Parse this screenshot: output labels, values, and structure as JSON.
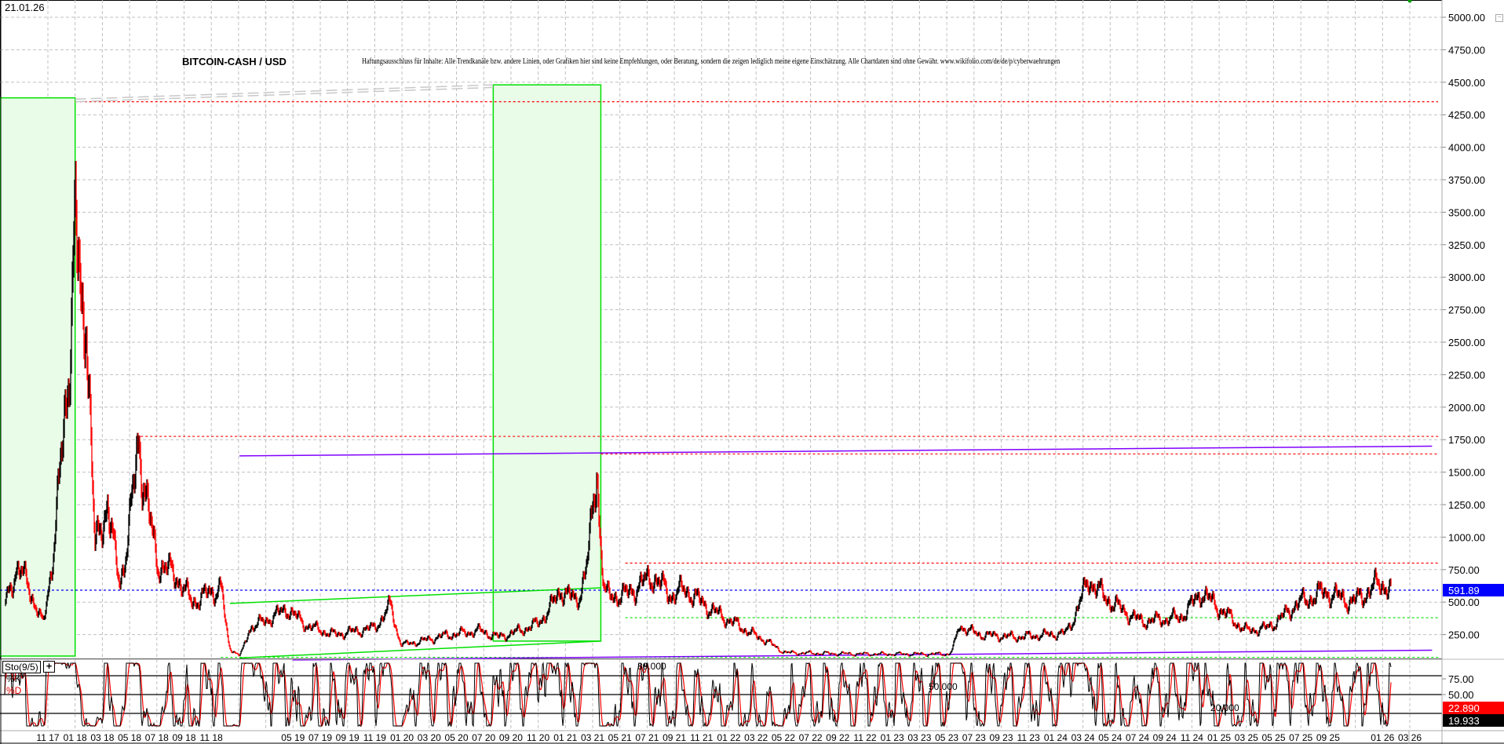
{
  "header": {
    "date": "21.01.26",
    "title": "BITCOIN-CASH / USD",
    "disclaimer": "Haftungsausschluss für Inhalte: Alle Trendkanäle bzw. andere Linien, oder Grafiken hier sind keine Empfehlungen, oder Beratung, sondern die zeigen lediglich meine eigene Einschätzung. Alle Chartdaten sind ohne Gewähr. www.wikifolio.com/de/de/p/cyberwaehrungen"
  },
  "indicator": {
    "label": "Sto(9/5)",
    "add_icon": "plus-icon",
    "k_label": "%K",
    "d_label": "%D",
    "k_last": "19.933",
    "d_last": "22.890",
    "levels": [
      {
        "value": 80,
        "label": "80.000"
      },
      {
        "value": 50,
        "label": "50.000"
      },
      {
        "value": 20,
        "label": "20.000"
      }
    ],
    "y_ticks": [
      "75.00",
      "50.00"
    ]
  },
  "colors": {
    "price_up": "#000000",
    "price_down": "#ff0000",
    "last_price_box": "#0000ff",
    "zone_fill": "#e8fce8",
    "zone_border": "#00e000",
    "resistance": "#ff0000",
    "support": "#00e000",
    "trend_purple": "#8000ff"
  },
  "chart_data": {
    "type": "line",
    "title": "BITCOIN-CASH / USD",
    "xlabel": "",
    "ylabel": "",
    "ylim": [
      0,
      5000
    ],
    "grid": true,
    "last_price": "591.89",
    "y_ticks": [
      "250.00",
      "500.00",
      "750.00",
      "1000.00",
      "1250.00",
      "1500.00",
      "1750.00",
      "2000.00",
      "2250.00",
      "2500.00",
      "2750.00",
      "3000.00",
      "3250.00",
      "3500.00",
      "3750.00",
      "4000.00",
      "4250.00",
      "4500.00",
      "4750.00",
      "5000.00"
    ],
    "x_ticks": [
      "11 17",
      "01 18",
      "03 18",
      "05 18",
      "07 18",
      "09 18",
      "11 18",
      "",
      "",
      "05 19",
      "07 19",
      "09 19",
      "11 19",
      "01 20",
      "03 20",
      "05 20",
      "07 20",
      "09 20",
      "11 20",
      "01 21",
      "03 21",
      "05 21",
      "07 21",
      "09 21",
      "11 21",
      "01 22",
      "03 22",
      "05 22",
      "07 22",
      "09 22",
      "11 22",
      "01 23",
      "03 23",
      "05 23",
      "07 23",
      "09 23",
      "11 23",
      "01 24",
      "03 24",
      "05 24",
      "07 24",
      "09 24",
      "11 24",
      "01 25",
      "03 25",
      "05 25",
      "07 25",
      "09 25",
      "",
      "01 26",
      "03 26"
    ],
    "series": [
      {
        "points": [
          [
            "2017-07-25",
            480
          ],
          [
            "2017-08-20",
            760
          ],
          [
            "2017-09-18",
            650
          ],
          [
            "2017-10-20",
            330
          ],
          [
            "2017-11-01",
            600
          ],
          [
            "2017-11-28",
            1500
          ],
          [
            "2018-01-01",
            3400
          ],
          [
            "2018-01-16",
            2600
          ],
          [
            "2018-01-25",
            2900
          ],
          [
            "2018-02-06",
            1800
          ],
          [
            "2018-02-15",
            900
          ],
          [
            "2018-03-12",
            1300
          ],
          [
            "2018-04-09",
            650
          ],
          [
            "2018-05-21",
            1780
          ],
          [
            "2018-07-03",
            800
          ],
          [
            "2018-08-15",
            700
          ],
          [
            "2018-09-18",
            500
          ],
          [
            "2018-11-24",
            620
          ],
          [
            "2018-12-12",
            150
          ],
          [
            "2019-01-03",
            90
          ],
          [
            "2019-01-24",
            300
          ],
          [
            "2019-04-18",
            450
          ],
          [
            "2019-06-01",
            320
          ],
          [
            "2019-08-01",
            250
          ],
          [
            "2019-10-28",
            300
          ],
          [
            "2019-12-07",
            480
          ],
          [
            "2020-01-01",
            170
          ],
          [
            "2020-04-01",
            240
          ],
          [
            "2020-06-22",
            280
          ],
          [
            "2020-08-04",
            230
          ],
          [
            "2020-10-28",
            330
          ],
          [
            "2020-12-22",
            600
          ],
          [
            "2021-01-25",
            500
          ],
          [
            "2021-02-19",
            800
          ],
          [
            "2021-03-10",
            1600
          ],
          [
            "2021-03-28",
            550
          ],
          [
            "2021-05-10",
            550
          ],
          [
            "2021-07-13",
            700
          ],
          [
            "2021-08-25",
            550
          ],
          [
            "2021-09-25",
            600
          ],
          [
            "2021-11-19",
            450
          ],
          [
            "2022-01-22",
            320
          ],
          [
            "2022-03-25",
            200
          ],
          [
            "2022-05-07",
            110
          ],
          [
            "2022-10-25",
            100
          ],
          [
            "2023-05-07",
            100
          ],
          [
            "2023-05-28",
            320
          ],
          [
            "2023-07-10",
            250
          ],
          [
            "2023-10-04",
            230
          ],
          [
            "2024-01-22",
            260
          ],
          [
            "2024-02-22",
            480
          ],
          [
            "2024-03-13",
            680
          ],
          [
            "2024-04-15",
            550
          ],
          [
            "2024-07-10",
            350
          ],
          [
            "2024-10-04",
            380
          ],
          [
            "2024-11-22",
            580
          ],
          [
            "2025-01-19",
            400
          ],
          [
            "2025-03-01",
            280
          ],
          [
            "2025-04-16",
            300
          ],
          [
            "2025-06-19",
            480
          ],
          [
            "2025-08-22",
            580
          ],
          [
            "2025-10-25",
            500
          ],
          [
            "2025-12-25",
            650
          ],
          [
            "2026-01-21",
            592
          ]
        ]
      }
    ],
    "annotations": {
      "zones": [
        {
          "from": "2017-07-01",
          "to": "2018-01-01",
          "low": 85,
          "high": 4380
        },
        {
          "from": "2020-07-22",
          "to": "2021-03-19",
          "low": 200,
          "high": 4480
        }
      ],
      "horizontal_lines": [
        {
          "price": 4350,
          "from": "2018-01-01",
          "style": "resistance"
        },
        {
          "price": 1775,
          "from": "2018-05-15",
          "style": "resistance"
        },
        {
          "price": 1640,
          "from": "2021-03-19",
          "style": "resistance"
        },
        {
          "price": 800,
          "from": "2021-05-13",
          "style": "resistance"
        },
        {
          "price": 591.89,
          "from": "2017-07-01",
          "style": "last_price"
        },
        {
          "price": 380,
          "from": "2021-05-13",
          "style": "support"
        },
        {
          "price": 75,
          "from": "2018-11-22",
          "style": "support"
        }
      ],
      "trend_lines": [
        {
          "from": [
            "2019-01-03",
            1625
          ],
          "to": [
            "2026-04-20",
            1700
          ],
          "style": "trend_purple"
        },
        {
          "from": [
            "2019-04-30",
            55
          ],
          "to": [
            "2026-04-20",
            130
          ],
          "style": "trend_purple"
        },
        {
          "from": [
            "2018-12-12",
            490
          ],
          "to": [
            "2021-03-19",
            610
          ],
          "style": "support"
        },
        {
          "from": [
            "2019-01-03",
            70
          ],
          "to": [
            "2021-03-19",
            200
          ],
          "style": "support"
        },
        {
          "from": [
            "2018-01-01",
            4370
          ],
          "to": [
            "2020-07-22",
            4480
          ],
          "style": "gray"
        },
        {
          "from": [
            "2018-01-01",
            4350
          ],
          "to": [
            "2020-07-22",
            4460
          ],
          "style": "gray"
        }
      ]
    }
  }
}
